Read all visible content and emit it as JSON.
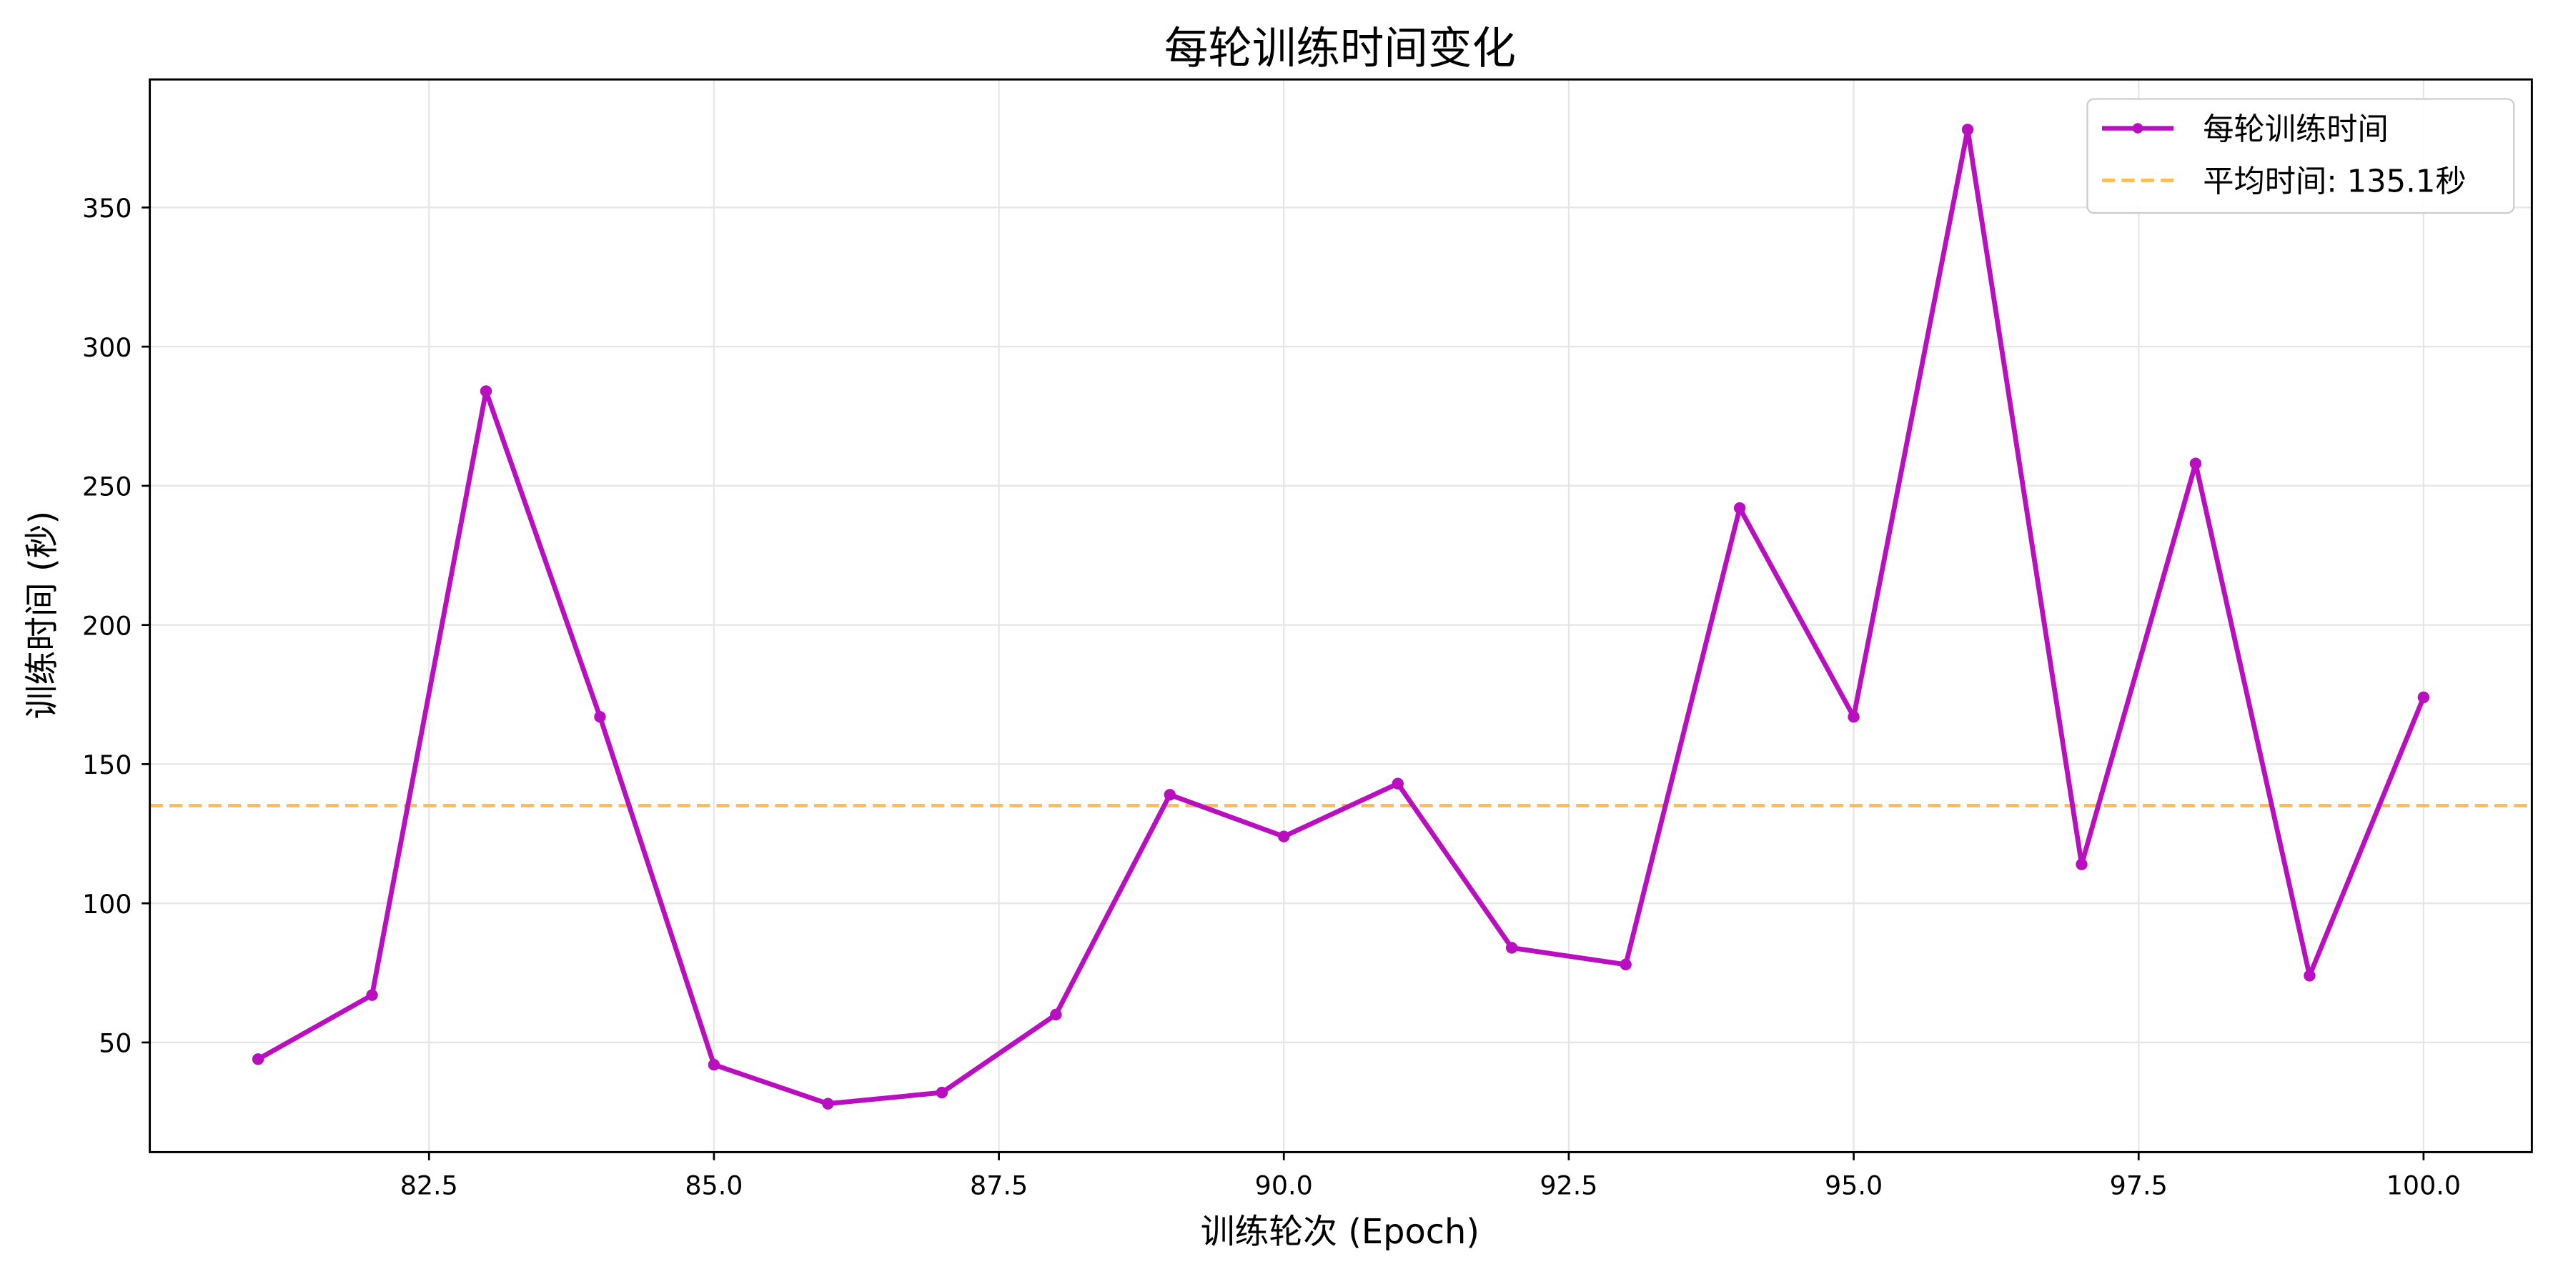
{
  "chart_data": {
    "type": "line",
    "title": "每轮训练时间变化",
    "xlabel": "训练轮次 (Epoch)",
    "ylabel": "训练时间 (秒)",
    "xlim": [
      80.05,
      100.95
    ],
    "ylim": [
      10.6,
      396
    ],
    "xticks": [
      82.5,
      85.0,
      87.5,
      90.0,
      92.5,
      95.0,
      97.5,
      100.0
    ],
    "yticks": [
      50,
      100,
      150,
      200,
      250,
      300,
      350
    ],
    "grid": true,
    "legend_position": "top-right",
    "series": [
      {
        "name": "每轮训练时间",
        "color": "#b90fc0",
        "x": [
          81,
          82,
          83,
          84,
          85,
          86,
          87,
          88,
          89,
          90,
          91,
          92,
          93,
          94,
          95,
          96,
          97,
          98,
          99,
          100
        ],
        "y": [
          44,
          67,
          284,
          167,
          42,
          28,
          32,
          60,
          139,
          124,
          143,
          84,
          78,
          242,
          167,
          378,
          114,
          258,
          74,
          174
        ]
      }
    ],
    "reference_lines": [
      {
        "name": "平均时间: 135.1秒",
        "value": 135.1,
        "color": "#ffb13b",
        "style": "dashed"
      }
    ]
  }
}
